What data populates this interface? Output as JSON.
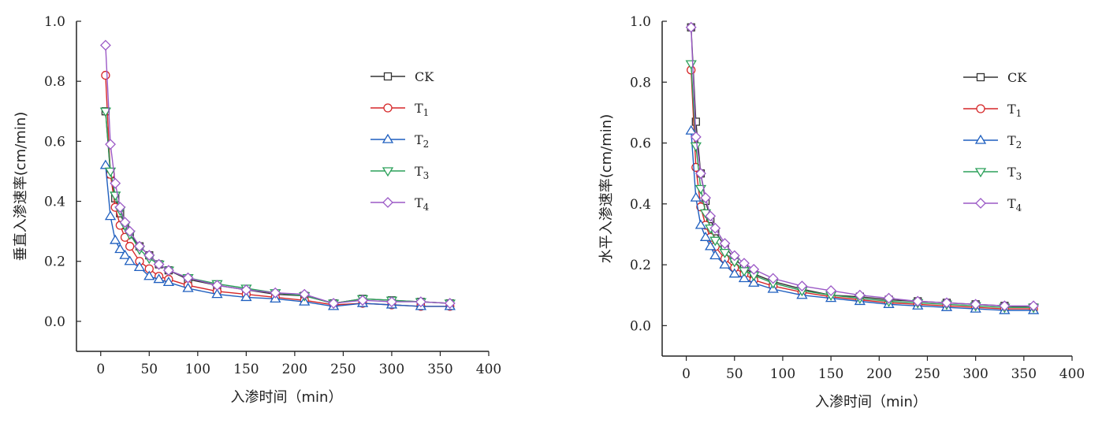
{
  "chart_data": [
    {
      "type": "line",
      "xlabel": "入渗时间（min）",
      "ylabel": "垂直入渗速率(cm/min)",
      "xlim": [
        -25,
        400
      ],
      "ylim": [
        -0.1,
        1.0
      ],
      "xticks": [
        0,
        50,
        100,
        150,
        200,
        250,
        300,
        350,
        400
      ],
      "yticks": [
        0.0,
        0.2,
        0.4,
        0.6,
        0.8,
        1.0
      ],
      "x": [
        5,
        10,
        15,
        20,
        25,
        30,
        40,
        50,
        60,
        70,
        90,
        120,
        150,
        180,
        210,
        240,
        270,
        300,
        330,
        360
      ],
      "legend_position": "top-right",
      "series": [
        {
          "name": "CK",
          "marker": "square",
          "color": "#333333",
          "values": [
            0.7,
            0.49,
            0.41,
            0.36,
            0.32,
            0.29,
            0.25,
            0.22,
            0.19,
            0.17,
            0.14,
            0.12,
            0.105,
            0.09,
            0.085,
            0.06,
            0.075,
            0.07,
            0.065,
            0.06
          ]
        },
        {
          "name": "T1",
          "marker": "circle",
          "color": "#d62728",
          "values": [
            0.82,
            0.49,
            0.38,
            0.32,
            0.28,
            0.25,
            0.2,
            0.175,
            0.15,
            0.14,
            0.12,
            0.1,
            0.09,
            0.08,
            0.07,
            0.055,
            0.06,
            0.055,
            0.05,
            0.05
          ]
        },
        {
          "name": "T2",
          "marker": "triangle-up",
          "color": "#1f5fbf",
          "values": [
            0.52,
            0.35,
            0.27,
            0.24,
            0.22,
            0.2,
            0.18,
            0.15,
            0.14,
            0.13,
            0.11,
            0.09,
            0.08,
            0.075,
            0.065,
            0.05,
            0.06,
            0.055,
            0.05,
            0.05
          ]
        },
        {
          "name": "T3",
          "marker": "triangle-down",
          "color": "#2ca05a",
          "values": [
            0.7,
            0.5,
            0.42,
            0.37,
            0.32,
            0.29,
            0.24,
            0.21,
            0.19,
            0.17,
            0.145,
            0.125,
            0.11,
            0.095,
            0.085,
            0.06,
            0.075,
            0.07,
            0.065,
            0.06
          ]
        },
        {
          "name": "T4",
          "marker": "diamond",
          "color": "#9b59c6",
          "values": [
            0.92,
            0.59,
            0.46,
            0.38,
            0.33,
            0.3,
            0.25,
            0.22,
            0.19,
            0.17,
            0.145,
            0.12,
            0.105,
            0.095,
            0.09,
            0.06,
            0.07,
            0.065,
            0.065,
            0.06
          ]
        }
      ]
    },
    {
      "type": "line",
      "xlabel": "入渗时间（min）",
      "ylabel": "水平入渗速率(cm/min)",
      "xlim": [
        -25,
        400
      ],
      "ylim": [
        -0.1,
        1.0
      ],
      "xticks": [
        0,
        50,
        100,
        150,
        200,
        250,
        300,
        350,
        400
      ],
      "yticks": [
        0.0,
        0.2,
        0.4,
        0.6,
        0.8,
        1.0
      ],
      "x": [
        5,
        10,
        15,
        20,
        25,
        30,
        40,
        50,
        60,
        70,
        90,
        120,
        150,
        180,
        210,
        240,
        270,
        300,
        330,
        360
      ],
      "legend_position": "top-right",
      "series": [
        {
          "name": "CK",
          "marker": "square",
          "color": "#333333",
          "values": [
            0.98,
            0.67,
            0.5,
            0.41,
            0.35,
            0.31,
            0.26,
            0.22,
            0.19,
            0.17,
            0.145,
            0.12,
            0.1,
            0.095,
            0.085,
            0.08,
            0.075,
            0.07,
            0.065,
            0.06
          ]
        },
        {
          "name": "T1",
          "marker": "circle",
          "color": "#d62728",
          "values": [
            0.84,
            0.52,
            0.39,
            0.33,
            0.29,
            0.26,
            0.22,
            0.19,
            0.17,
            0.15,
            0.13,
            0.11,
            0.095,
            0.085,
            0.075,
            0.07,
            0.065,
            0.06,
            0.055,
            0.055
          ]
        },
        {
          "name": "T2",
          "marker": "triangle-up",
          "color": "#1f5fbf",
          "values": [
            0.64,
            0.42,
            0.33,
            0.29,
            0.26,
            0.23,
            0.2,
            0.17,
            0.155,
            0.14,
            0.12,
            0.1,
            0.09,
            0.08,
            0.07,
            0.065,
            0.06,
            0.055,
            0.05,
            0.05
          ]
        },
        {
          "name": "T3",
          "marker": "triangle-down",
          "color": "#2ca05a",
          "values": [
            0.86,
            0.59,
            0.45,
            0.37,
            0.32,
            0.28,
            0.24,
            0.21,
            0.18,
            0.165,
            0.14,
            0.115,
            0.1,
            0.09,
            0.08,
            0.075,
            0.07,
            0.065,
            0.06,
            0.06
          ]
        },
        {
          "name": "T4",
          "marker": "diamond",
          "color": "#9b59c6",
          "values": [
            0.98,
            0.62,
            0.5,
            0.42,
            0.36,
            0.32,
            0.27,
            0.23,
            0.205,
            0.185,
            0.155,
            0.13,
            0.115,
            0.1,
            0.09,
            0.08,
            0.075,
            0.07,
            0.065,
            0.065
          ]
        }
      ]
    }
  ]
}
